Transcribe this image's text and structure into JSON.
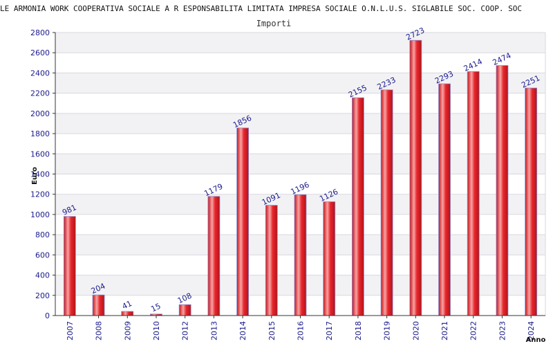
{
  "chart_data": {
    "type": "bar",
    "title": "LE ARMONIA WORK COOPERATIVA SOCIALE A R ESPONSABILITA LIMITATA IMPRESA SOCIALE O.N.L.U.S. SIGLABILE SOC. COOP. SOC",
    "subtitle": "Importi",
    "xlabel": "Anno",
    "ylabel": "Euro",
    "categories": [
      "2007",
      "2008",
      "2009",
      "2010",
      "2012",
      "2013",
      "2014",
      "2015",
      "2016",
      "2017",
      "2018",
      "2019",
      "2020",
      "2021",
      "2022",
      "2023",
      "2024"
    ],
    "values": [
      981,
      204,
      41,
      15,
      108,
      1179,
      1856,
      1091,
      1196,
      1126,
      2155,
      2233,
      2723,
      2293,
      2414,
      2474,
      2251
    ],
    "ylim": [
      0,
      2800
    ],
    "yticks": [
      0,
      200,
      400,
      600,
      800,
      1000,
      1200,
      1400,
      1600,
      1800,
      2000,
      2200,
      2400,
      2600,
      2800
    ],
    "grid": true,
    "colors": {
      "bar": "#e8262b",
      "bar_highlight": "#f7a3a3",
      "bar_stroke": "#8a8ad0",
      "band": "#f2f2f4",
      "grid": "#d8d8e0",
      "axis": "#333333",
      "text": "#1a1a8c"
    }
  }
}
